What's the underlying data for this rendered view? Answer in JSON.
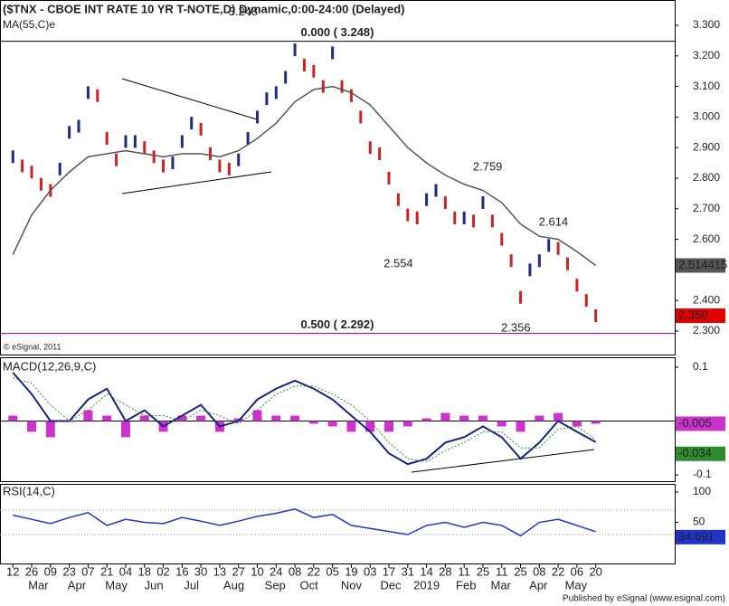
{
  "chart_data": [
    {
      "type": "bar",
      "title": "($TNX - CBOE INT RATE 10 YR T-NOTE,D) Dynamic,0:00-24:00 (Delayed)",
      "ylim": [
        2.223,
        3.38
      ],
      "yticks": [
        {
          "value": 3.3,
          "label": "3.300"
        },
        {
          "value": 3.2,
          "label": "3.200"
        },
        {
          "value": 3.1,
          "label": "3.100"
        },
        {
          "value": 3.0,
          "label": "3.000"
        },
        {
          "value": 2.9,
          "label": "2.900"
        },
        {
          "value": 2.8,
          "label": "2.800"
        },
        {
          "value": 2.7,
          "label": "2.700"
        },
        {
          "value": 2.6,
          "label": "2.600"
        },
        {
          "value": 2.5,
          "label": "2.500"
        },
        {
          "value": 2.4,
          "label": "2.400"
        },
        {
          "value": 2.3,
          "label": "2.300"
        }
      ],
      "series": [
        {
          "name": "$TNX",
          "up_color": "#1f2a80",
          "down_color": "#cc2222",
          "x": [
            0,
            1,
            2,
            3,
            4,
            5,
            6,
            7,
            8,
            9,
            10,
            11,
            12,
            13,
            14,
            15,
            16,
            17,
            18,
            19,
            20,
            21,
            22,
            23,
            24,
            25,
            26,
            27,
            28,
            29,
            30,
            31,
            32,
            33,
            34,
            35,
            36,
            37,
            38,
            39,
            40,
            41,
            42,
            43,
            44,
            45,
            46,
            47,
            48,
            49,
            50,
            51,
            52,
            53,
            54,
            55,
            56,
            57,
            58,
            59,
            60,
            61,
            62
          ],
          "values": [
            2.87,
            2.84,
            2.82,
            2.78,
            2.76,
            2.83,
            2.95,
            2.97,
            3.08,
            3.07,
            2.93,
            2.86,
            2.92,
            2.92,
            2.9,
            2.87,
            2.84,
            2.85,
            2.92,
            2.98,
            2.96,
            2.88,
            2.84,
            2.83,
            2.86,
            2.93,
            3.0,
            3.06,
            3.08,
            3.13,
            3.22,
            3.17,
            3.15,
            3.1,
            3.21,
            3.1,
            3.07,
            3.0,
            2.9,
            2.88,
            2.8,
            2.73,
            2.68,
            2.67,
            2.73,
            2.76,
            2.72,
            2.67,
            2.67,
            2.66,
            2.72,
            2.66,
            2.6,
            2.53,
            2.41,
            2.5,
            2.53,
            2.58,
            2.57,
            2.52,
            2.45,
            2.4,
            2.35
          ],
          "value_labels": {
            "62": "2.350"
          }
        },
        {
          "name": "MA(55,C)e",
          "color": "#555555",
          "x": [
            0,
            2,
            4,
            6,
            8,
            10,
            12,
            14,
            16,
            18,
            20,
            22,
            24,
            26,
            28,
            30,
            32,
            34,
            36,
            38,
            40,
            42,
            44,
            46,
            48,
            50,
            52,
            54,
            56,
            58,
            60,
            62
          ],
          "values": [
            2.55,
            2.68,
            2.76,
            2.82,
            2.87,
            2.88,
            2.89,
            2.88,
            2.87,
            2.88,
            2.88,
            2.87,
            2.89,
            2.93,
            2.98,
            3.05,
            3.09,
            3.1,
            3.08,
            3.04,
            2.97,
            2.9,
            2.85,
            2.81,
            2.78,
            2.76,
            2.72,
            2.65,
            2.61,
            2.6,
            2.56,
            2.514415
          ]
        }
      ],
      "levels": [
        {
          "value": 3.248,
          "label": "0.000 ( 3.248)",
          "color": "#000000"
        },
        {
          "value": 2.292,
          "label": "0.500 ( 2.292)",
          "color": "#800080"
        }
      ],
      "annotations": [
        {
          "x": 24.5,
          "value": 3.248
        },
        {
          "x": 50.5,
          "value": 2.759
        },
        {
          "x": 41,
          "value": 2.554
        },
        {
          "x": 57.5,
          "value": 2.614
        },
        {
          "x": 53.5,
          "value": 2.356
        }
      ],
      "copyright": "© eSignal, 2011"
    },
    {
      "type": "line",
      "title": "MACD(12,26,9,C)",
      "ylim": [
        -0.1117,
        0.1167
      ],
      "yticks": [
        0.1,
        -0.1
      ],
      "series": [
        {
          "name": "Histogram",
          "style": "histogram",
          "color": "#cc33cc",
          "x": [
            0,
            2,
            4,
            6,
            8,
            10,
            12,
            14,
            16,
            18,
            20,
            22,
            24,
            26,
            28,
            30,
            32,
            34,
            36,
            38,
            40,
            42,
            44,
            46,
            48,
            50,
            52,
            54,
            56,
            58,
            60,
            62
          ],
          "values": [
            0.01,
            -0.02,
            -0.03,
            0,
            0.02,
            0.01,
            -0.03,
            0.01,
            -0.02,
            0.01,
            0.01,
            -0.02,
            0.005,
            0.02,
            0.01,
            0.01,
            -0.005,
            -0.01,
            -0.02,
            -0.02,
            -0.02,
            -0.01,
            0.005,
            0.015,
            0.01,
            0.01,
            -0.01,
            -0.02,
            0.01,
            0.015,
            -0.01,
            -0.005
          ]
        },
        {
          "name": "MACD",
          "style": "line",
          "color": "#1a237e",
          "x": [
            0,
            2,
            4,
            6,
            8,
            10,
            12,
            14,
            16,
            18,
            20,
            22,
            24,
            26,
            28,
            30,
            32,
            34,
            36,
            38,
            40,
            42,
            44,
            46,
            48,
            50,
            52,
            54,
            56,
            58,
            60,
            62
          ],
          "values": [
            0.09,
            0.05,
            0,
            0,
            0.04,
            0.06,
            0,
            0.02,
            -0.01,
            0.01,
            0.03,
            -0.01,
            0,
            0.04,
            0.06,
            0.075,
            0.06,
            0.04,
            0.01,
            -0.02,
            -0.06,
            -0.08,
            -0.07,
            -0.04,
            -0.03,
            -0.01,
            -0.03,
            -0.07,
            -0.04,
            0,
            -0.02,
            -0.039
          ]
        },
        {
          "name": "Signal",
          "style": "dotted",
          "color": "#2e8b2e",
          "x": [
            0,
            2,
            4,
            6,
            8,
            10,
            12,
            14,
            16,
            18,
            20,
            22,
            24,
            26,
            28,
            30,
            32,
            34,
            36,
            38,
            40,
            42,
            44,
            46,
            48,
            50,
            52,
            54,
            56,
            58,
            60,
            62
          ],
          "values": [
            0.08,
            0.07,
            0.03,
            0,
            0.02,
            0.05,
            0.03,
            0.01,
            0.01,
            0,
            0.02,
            0.01,
            -0.005,
            0.02,
            0.05,
            0.065,
            0.065,
            0.05,
            0.03,
            0,
            -0.04,
            -0.07,
            -0.075,
            -0.055,
            -0.04,
            -0.02,
            -0.02,
            -0.05,
            -0.05,
            -0.015,
            -0.01,
            -0.034
          ]
        }
      ]
    },
    {
      "type": "line",
      "title": "RSI(14,C)",
      "ylim": [
        -17.6,
        111.8
      ],
      "yticks": [
        100,
        50
      ],
      "levels": [
        70,
        30
      ],
      "series": [
        {
          "name": "RSI",
          "style": "line",
          "color": "#2233cc",
          "x": [
            0,
            2,
            4,
            6,
            8,
            10,
            12,
            14,
            16,
            18,
            20,
            22,
            24,
            26,
            28,
            30,
            32,
            34,
            36,
            38,
            40,
            42,
            44,
            46,
            48,
            50,
            52,
            54,
            56,
            58,
            60,
            62
          ],
          "values": [
            62,
            55,
            48,
            58,
            66,
            45,
            55,
            50,
            48,
            58,
            52,
            45,
            52,
            60,
            65,
            72,
            58,
            63,
            45,
            40,
            35,
            30,
            45,
            50,
            42,
            50,
            45,
            28,
            50,
            55,
            45,
            34.691
          ]
        }
      ],
      "xlim": [
        -1.37,
        70.4
      ],
      "xticks": [
        {
          "value": 0,
          "label": "12"
        },
        {
          "value": 2,
          "label": "26"
        },
        {
          "value": 4,
          "label": "09"
        },
        {
          "value": 6,
          "label": "23"
        },
        {
          "value": 8,
          "label": "07"
        },
        {
          "value": 10,
          "label": "21"
        },
        {
          "value": 12,
          "label": "04"
        },
        {
          "value": 14,
          "label": "18"
        },
        {
          "value": 16,
          "label": "02"
        },
        {
          "value": 18,
          "label": "16"
        },
        {
          "value": 20,
          "label": "30"
        },
        {
          "value": 22,
          "label": "13"
        },
        {
          "value": 24,
          "label": "27"
        },
        {
          "value": 26,
          "label": "10"
        },
        {
          "value": 28,
          "label": "24"
        },
        {
          "value": 30,
          "label": "08"
        },
        {
          "value": 32,
          "label": "22"
        },
        {
          "value": 34,
          "label": "05"
        },
        {
          "value": 36,
          "label": "19"
        },
        {
          "value": 38,
          "label": "03"
        },
        {
          "value": 40,
          "label": "17"
        },
        {
          "value": 42,
          "label": "31"
        },
        {
          "value": 44,
          "label": "14"
        },
        {
          "value": 46,
          "label": "28"
        },
        {
          "value": 48,
          "label": "11"
        },
        {
          "value": 50,
          "label": "25"
        },
        {
          "value": 52,
          "label": "11"
        },
        {
          "value": 54,
          "label": "25"
        },
        {
          "value": 56,
          "label": "08"
        },
        {
          "value": 58,
          "label": "22"
        },
        {
          "value": 60,
          "label": "06"
        },
        {
          "value": 62,
          "label": "20"
        }
      ],
      "months": [
        {
          "value": 2.7,
          "label": "Mar"
        },
        {
          "value": 6.8,
          "label": "Apr"
        },
        {
          "value": 11,
          "label": "May"
        },
        {
          "value": 15,
          "label": "Jun"
        },
        {
          "value": 19,
          "label": "Jul"
        },
        {
          "value": 23.5,
          "label": "Aug"
        },
        {
          "value": 27.9,
          "label": "Sep"
        },
        {
          "value": 31.5,
          "label": "Oct"
        },
        {
          "value": 36,
          "label": "Nov"
        },
        {
          "value": 40.2,
          "label": "Dec"
        },
        {
          "value": 44,
          "label": "2019"
        },
        {
          "value": 48.2,
          "label": "Feb"
        },
        {
          "value": 51.9,
          "label": "Mar"
        },
        {
          "value": 55.9,
          "label": "Apr"
        },
        {
          "value": 59.9,
          "label": "May"
        }
      ]
    }
  ],
  "footer": "Published by eSignal (www.esignal.com)"
}
